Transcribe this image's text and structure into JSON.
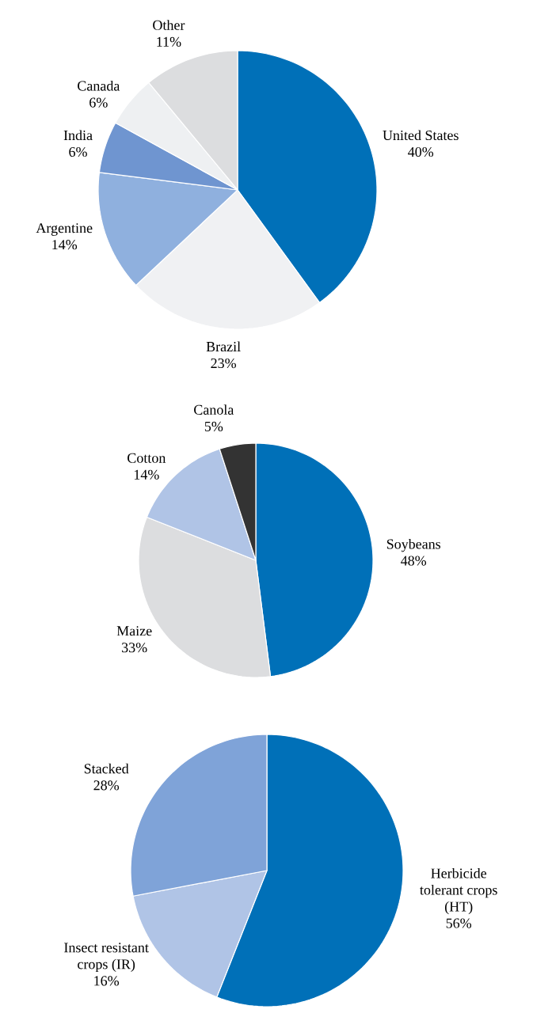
{
  "chart_data": [
    {
      "type": "pie",
      "categories": [
        "United States",
        "Brazil",
        "Argentine",
        "India",
        "Canada",
        "Other"
      ],
      "values": [
        40,
        23,
        14,
        6,
        6,
        11
      ],
      "value_labels": [
        "40%",
        "23%",
        "14%",
        "6%",
        "6%",
        "11%"
      ],
      "colors": [
        "#0070b8",
        "#f0f1f3",
        "#8fb0de",
        "#6f95d0",
        "#eef0f2",
        "#dcdddf"
      ]
    },
    {
      "type": "pie",
      "categories": [
        "Soybeans",
        "Maize",
        "Cotton",
        "Canola"
      ],
      "values": [
        48,
        33,
        14,
        5
      ],
      "value_labels": [
        "48%",
        "33%",
        "14%",
        "5%"
      ],
      "colors": [
        "#0070b8",
        "#dcdddf",
        "#b0c4e6",
        "#333333"
      ]
    },
    {
      "type": "pie",
      "categories": [
        "Herbicide tolerant crops (HT)",
        "Insect resistant crops (IR)",
        "Stacked"
      ],
      "values": [
        56,
        16,
        28
      ],
      "value_labels": [
        "56%",
        "16%",
        "28%"
      ],
      "colors": [
        "#0070b8",
        "#b0c4e6",
        "#7fa3d8"
      ]
    }
  ]
}
